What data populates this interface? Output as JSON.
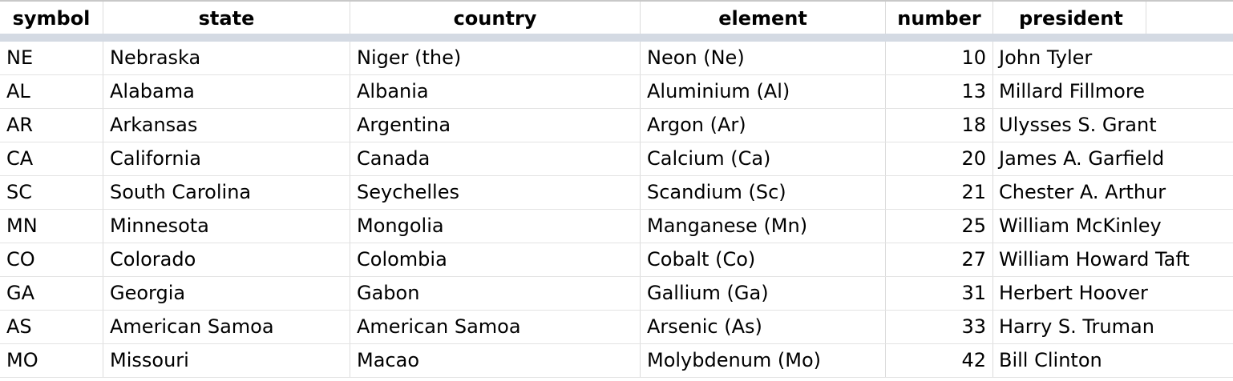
{
  "columns": {
    "symbol": "symbol",
    "state": "state",
    "country": "country",
    "element": "element",
    "number": "number",
    "president": "president"
  },
  "rows": [
    {
      "symbol": "NE",
      "state": "Nebraska",
      "country": "Niger (the)",
      "element": "Neon (Ne)",
      "number": "10",
      "president": "John Tyler"
    },
    {
      "symbol": "AL",
      "state": "Alabama",
      "country": "Albania",
      "element": "Aluminium (Al)",
      "number": "13",
      "president": "Millard Fillmore"
    },
    {
      "symbol": "AR",
      "state": "Arkansas",
      "country": "Argentina",
      "element": "Argon (Ar)",
      "number": "18",
      "president": "Ulysses S. Grant"
    },
    {
      "symbol": "CA",
      "state": "California",
      "country": "Canada",
      "element": "Calcium (Ca)",
      "number": "20",
      "president": "James A. Garfield"
    },
    {
      "symbol": "SC",
      "state": "South Carolina",
      "country": "Seychelles",
      "element": "Scandium (Sc)",
      "number": "21",
      "president": "Chester A. Arthur"
    },
    {
      "symbol": "MN",
      "state": "Minnesota",
      "country": "Mongolia",
      "element": "Manganese (Mn)",
      "number": "25",
      "president": "William McKinley"
    },
    {
      "symbol": "CO",
      "state": "Colorado",
      "country": "Colombia",
      "element": "Cobalt (Co)",
      "number": "27",
      "president": "William Howard Taft"
    },
    {
      "symbol": "GA",
      "state": "Georgia",
      "country": "Gabon",
      "element": "Gallium (Ga)",
      "number": "31",
      "president": "Herbert Hoover"
    },
    {
      "symbol": "AS",
      "state": "American Samoa",
      "country": "American Samoa",
      "element": "Arsenic (As)",
      "number": "33",
      "president": "Harry S. Truman"
    },
    {
      "symbol": "MO",
      "state": "Missouri",
      "country": "Macao",
      "element": "Molybdenum (Mo)",
      "number": "42",
      "president": "Bill Clinton"
    }
  ]
}
